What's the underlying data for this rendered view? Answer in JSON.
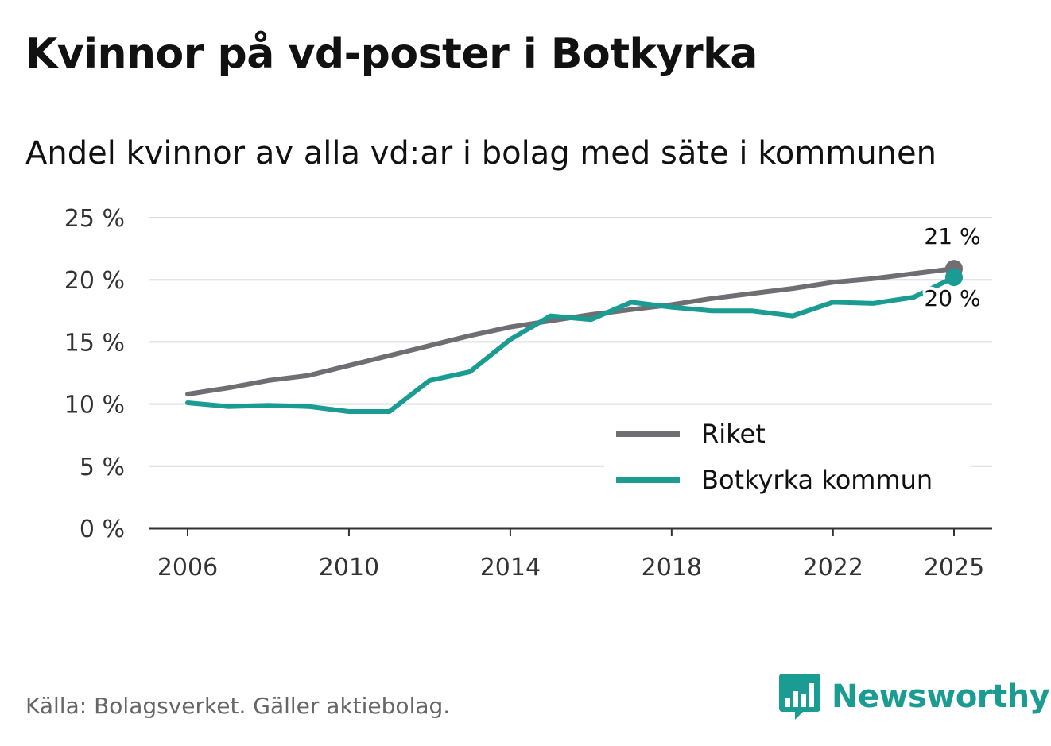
{
  "title": "Kvinnor på vd-poster i Botkyrka",
  "subtitle": "Andel kvinnor av alla vd:ar i bolag med säte i kommunen",
  "source": "Källa: Bolagsverket. Gäller aktiebolag.",
  "brand": {
    "name": "Newsworthy",
    "icon": "bar-chart-speech-icon",
    "color": "#1a9c93"
  },
  "chart_data": {
    "type": "line",
    "title": "Kvinnor på vd-poster i Botkyrka",
    "subtitle": "Andel kvinnor av alla vd:ar i bolag med säte i kommunen",
    "xlabel": "",
    "ylabel": "",
    "ylim": [
      0,
      25
    ],
    "yticks": [
      0,
      5,
      10,
      15,
      20,
      25
    ],
    "ytick_labels": [
      "0 %",
      "5 %",
      "10 %",
      "15 %",
      "20 %",
      "25 %"
    ],
    "xlim": [
      2005,
      2026
    ],
    "xticks": [
      2006,
      2010,
      2014,
      2018,
      2022,
      2025
    ],
    "xtick_labels": [
      "2006",
      "2010",
      "2014",
      "2018",
      "2022",
      "2025"
    ],
    "grid": true,
    "legend_position": "bottom-right",
    "x": [
      2006,
      2007,
      2008,
      2009,
      2010,
      2011,
      2012,
      2013,
      2014,
      2015,
      2016,
      2017,
      2018,
      2019,
      2020,
      2021,
      2022,
      2023,
      2024,
      2025
    ],
    "series": [
      {
        "name": "Riket",
        "color": "#6e6e73",
        "values": [
          10.8,
          11.3,
          11.9,
          12.3,
          13.1,
          13.9,
          14.7,
          15.5,
          16.2,
          16.7,
          17.2,
          17.6,
          18.0,
          18.5,
          18.9,
          19.3,
          19.8,
          20.1,
          20.5,
          20.9
        ],
        "end_label": "21 %"
      },
      {
        "name": "Botkyrka kommun",
        "color": "#1a9c93",
        "values": [
          10.1,
          9.8,
          9.9,
          9.8,
          9.4,
          9.4,
          11.9,
          12.6,
          15.2,
          17.1,
          16.8,
          18.2,
          17.8,
          17.5,
          17.5,
          17.1,
          18.2,
          18.1,
          18.6,
          20.2
        ],
        "end_label": "20 %"
      }
    ]
  }
}
